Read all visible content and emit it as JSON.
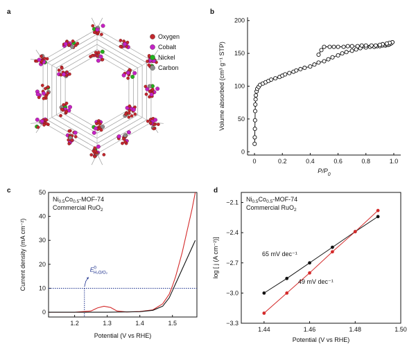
{
  "figure": {
    "panel_labels": [
      "a",
      "b",
      "c",
      "d"
    ]
  },
  "panel_a": {
    "type": "structure",
    "legend": [
      {
        "label": "Oxygen",
        "color": "#c2272d"
      },
      {
        "label": "Cobalt",
        "color": "#c322c5"
      },
      {
        "label": "Nickel",
        "color": "#22b21f"
      },
      {
        "label": "Carbon",
        "color": "#8c8c8c"
      }
    ]
  },
  "chart_data": [
    {
      "panel": "b",
      "type": "line",
      "xlabel": "P/P",
      "xlabel_sub": "0",
      "ylabel": "Volume absorbed (cm³ g⁻¹ STP)",
      "xlim": [
        -0.05,
        1.05
      ],
      "ylim": [
        -5,
        205
      ],
      "xticks": [
        0,
        0.2,
        0.4,
        0.6,
        0.8,
        1.0
      ],
      "xtick_labels": [
        "0",
        "0.2",
        "0.4",
        "0.6",
        "0.8",
        "1.0"
      ],
      "yticks": [
        0,
        50,
        100,
        150,
        200
      ],
      "ytick_labels": [
        "0",
        "50",
        "100",
        "150",
        "200"
      ],
      "color": "#111111",
      "series": [
        {
          "name": "Adsorption",
          "x": [
            0.001,
            0.002,
            0.003,
            0.004,
            0.005,
            0.006,
            0.008,
            0.01,
            0.015,
            0.02,
            0.03,
            0.04,
            0.06,
            0.08,
            0.1,
            0.12,
            0.15,
            0.18,
            0.2,
            0.22,
            0.25,
            0.28,
            0.3,
            0.33,
            0.36,
            0.4,
            0.43,
            0.46,
            0.5,
            0.53,
            0.56,
            0.6,
            0.63,
            0.66,
            0.7,
            0.73,
            0.76,
            0.8,
            0.83,
            0.86,
            0.88,
            0.9,
            0.92,
            0.94,
            0.95,
            0.96,
            0.97,
            0.98,
            0.99
          ],
          "y": [
            12,
            22,
            35,
            48,
            62,
            72,
            80,
            86,
            92,
            96,
            99,
            102,
            104,
            106,
            108,
            110,
            112,
            114,
            116,
            118,
            120,
            122,
            124,
            126,
            128,
            130,
            133,
            136,
            138,
            141,
            144,
            147,
            150,
            152,
            154,
            156,
            158,
            159,
            160,
            160,
            161,
            161,
            162,
            162,
            163,
            163,
            164,
            165,
            167
          ]
        },
        {
          "name": "Desorption",
          "x": [
            0.99,
            0.97,
            0.95,
            0.92,
            0.9,
            0.87,
            0.84,
            0.8,
            0.77,
            0.74,
            0.7,
            0.67,
            0.64,
            0.6,
            0.57,
            0.54,
            0.5,
            0.48,
            0.46
          ],
          "y": [
            167,
            166,
            165,
            164,
            163,
            162,
            162,
            162,
            162,
            161,
            161,
            161,
            160,
            160,
            160,
            160,
            160,
            155,
            148
          ]
        }
      ]
    },
    {
      "panel": "c",
      "type": "line",
      "xlabel": "Potential (V vs RHE)",
      "ylabel": "Current density (mA cm⁻²)",
      "xlim": [
        1.12,
        1.575
      ],
      "ylim": [
        -2,
        50
      ],
      "xticks": [
        1.2,
        1.3,
        1.4,
        1.5
      ],
      "xtick_labels": [
        "1.2",
        "1.3",
        "1.4",
        "1.5"
      ],
      "yticks": [
        0,
        10,
        20,
        30,
        40,
        50
      ],
      "ytick_labels": [
        "0",
        "10",
        "20",
        "30",
        "40",
        "50"
      ],
      "legend": [
        {
          "parts": [
            "Ni",
            "0.5",
            "Co",
            "0.5",
            "-MOF-74"
          ],
          "color": "#d42a2a"
        },
        {
          "parts": [
            "Commercial RuO",
            "2"
          ],
          "color": "#111111"
        }
      ],
      "annotation": {
        "label": "E",
        "sup": "0",
        "sub": "H₂O/O₂",
        "x": 1.23,
        "color": "#1a2e8c"
      },
      "reference_line_y": 10,
      "series": [
        {
          "name": "Ni0.5Co0.5-MOF-74",
          "color": "#d42a2a",
          "x": [
            1.12,
            1.2,
            1.25,
            1.27,
            1.29,
            1.31,
            1.33,
            1.36,
            1.4,
            1.44,
            1.47,
            1.49,
            1.5,
            1.51,
            1.52,
            1.53,
            1.54,
            1.55,
            1.56,
            1.57
          ],
          "y": [
            0,
            0,
            0.5,
            1.8,
            2.5,
            2.0,
            0.5,
            0.1,
            0.3,
            1.0,
            3.5,
            7.5,
            11,
            15,
            20,
            25,
            31,
            37,
            43,
            50
          ]
        },
        {
          "name": "Commercial RuO2",
          "color": "#111111",
          "x": [
            1.12,
            1.2,
            1.3,
            1.4,
            1.44,
            1.47,
            1.49,
            1.5,
            1.51,
            1.52,
            1.53,
            1.54,
            1.55,
            1.56,
            1.57
          ],
          "y": [
            0,
            0,
            0,
            0.2,
            0.8,
            2.5,
            6,
            9,
            12,
            15,
            18,
            21,
            24,
            27,
            30
          ]
        }
      ]
    },
    {
      "panel": "d",
      "type": "line",
      "xlabel": "Potential (V vs RHE)",
      "ylabel": "log [ j (A cm⁻²)]",
      "xlim": [
        1.43,
        1.5
      ],
      "ylim": [
        -3.3,
        -2.0
      ],
      "xticks": [
        1.44,
        1.46,
        1.48,
        1.5
      ],
      "xtick_labels": [
        "1.44",
        "1.46",
        "1.48",
        "1.50"
      ],
      "yticks": [
        -3.3,
        -3.0,
        -2.7,
        -2.4,
        -2.1
      ],
      "ytick_labels": [
        "−3.3",
        "−3.0",
        "−2.7",
        "−2.4",
        "−2.1"
      ],
      "legend": [
        {
          "parts": [
            "Ni",
            "0.5",
            "Co",
            "0.5",
            "-MOF-74"
          ],
          "color": "#d42a2a"
        },
        {
          "parts": [
            "Commercial RuO",
            "2"
          ],
          "color": "#111111"
        }
      ],
      "slope_labels": [
        {
          "text": "65 mV dec⁻¹",
          "color": "#111111"
        },
        {
          "text": "49 mV dec⁻¹",
          "color": "#d42a2a"
        }
      ],
      "series": [
        {
          "name": "Commercial RuO2",
          "color": "#111111",
          "x": [
            1.44,
            1.45,
            1.46,
            1.47,
            1.48,
            1.49
          ],
          "y": [
            -3.0,
            -2.855,
            -2.7,
            -2.545,
            -2.39,
            -2.24
          ]
        },
        {
          "name": "Ni0.5Co0.5-MOF-74",
          "color": "#d42a2a",
          "x": [
            1.44,
            1.45,
            1.46,
            1.47,
            1.48,
            1.49
          ],
          "y": [
            -3.2,
            -3.0,
            -2.8,
            -2.59,
            -2.39,
            -2.18
          ]
        }
      ]
    }
  ]
}
